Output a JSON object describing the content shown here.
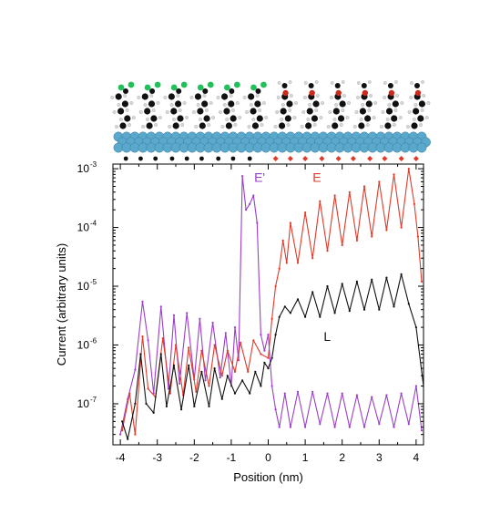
{
  "chart_data": {
    "type": "line",
    "xlabel": "Position (nm)",
    "ylabel": "Current (arbitrary units)",
    "xlim": [
      -4.2,
      4.2
    ],
    "ylim": [
      2e-08,
      0.0012
    ],
    "yscale": "log",
    "x_ticks": [
      -4,
      -3,
      -2,
      -1,
      0,
      1,
      2,
      3,
      4
    ],
    "x_tick_labels": [
      "-4",
      "-3",
      "-2",
      "-1",
      "0",
      "1",
      "2",
      "3",
      "4"
    ],
    "y_ticks": [
      {
        "value": 1e-07,
        "base": "10",
        "exp": "-7"
      },
      {
        "value": 1e-06,
        "base": "10",
        "exp": "-6"
      },
      {
        "value": 1e-05,
        "base": "10",
        "exp": "-5"
      },
      {
        "value": 0.0001,
        "base": "10",
        "exp": "-4"
      },
      {
        "value": 0.001,
        "base": "10",
        "exp": "-3"
      }
    ],
    "grid": false,
    "legend": "inline labels",
    "series": [
      {
        "name": "E'",
        "color": "#9b3fc9",
        "label_at": [
          -0.38,
          0.00072
        ],
        "x": [
          -4.0,
          -3.8,
          -3.6,
          -3.4,
          -3.25,
          -3.1,
          -2.9,
          -2.7,
          -2.55,
          -2.4,
          -2.2,
          -2.0,
          -1.85,
          -1.7,
          -1.5,
          -1.3,
          -1.15,
          -1.0,
          -0.9,
          -0.8,
          -0.7,
          -0.6,
          -0.5,
          -0.4,
          -0.3,
          -0.2,
          -0.1,
          0.0,
          0.1,
          0.2,
          0.3,
          0.45,
          0.6,
          0.8,
          1.0,
          1.2,
          1.4,
          1.6,
          1.8,
          2.0,
          2.2,
          2.4,
          2.6,
          2.8,
          3.0,
          3.2,
          3.4,
          3.6,
          3.8,
          4.0,
          4.15
        ],
        "values": [
          3e-08,
          1.2e-07,
          3.8e-07,
          5.5e-06,
          1.2e-06,
          1.5e-07,
          4.5e-06,
          1.8e-07,
          3.2e-06,
          2.2e-07,
          3.5e-06,
          2.6e-07,
          2.8e-06,
          2.5e-07,
          2.4e-06,
          2.8e-07,
          1.6e-06,
          2e-07,
          2e-06,
          5.5e-07,
          0.00075,
          0.0002,
          0.00025,
          0.00035,
          0.00012,
          1.5e-06,
          8e-07,
          1.5e-06,
          2e-07,
          8e-08,
          4e-08,
          1.5e-07,
          4e-08,
          1.6e-07,
          4e-08,
          1.6e-07,
          4.5e-08,
          1.5e-07,
          4e-08,
          1.5e-07,
          4e-08,
          1.4e-07,
          4e-08,
          1.3e-07,
          4.5e-08,
          1.4e-07,
          4e-08,
          1.5e-07,
          4.5e-08,
          2e-07,
          3.5e-08
        ]
      },
      {
        "name": "E",
        "color": "#e03a2a",
        "label_at": [
          1.2,
          0.00072
        ],
        "x": [
          -3.95,
          -3.75,
          -3.6,
          -3.4,
          -3.25,
          -3.05,
          -2.85,
          -2.65,
          -2.5,
          -2.3,
          -2.15,
          -1.95,
          -1.8,
          -1.6,
          -1.45,
          -1.25,
          -1.1,
          -0.9,
          -0.75,
          -0.55,
          -0.4,
          -0.2,
          0.0,
          0.1,
          0.2,
          0.3,
          0.4,
          0.5,
          0.6,
          0.8,
          1.0,
          1.2,
          1.4,
          1.6,
          1.8,
          2.0,
          2.2,
          2.4,
          2.6,
          2.8,
          3.0,
          3.2,
          3.4,
          3.6,
          3.8,
          3.95,
          4.05,
          4.15
        ],
        "values": [
          3.5e-08,
          1.5e-07,
          3e-08,
          1.4e-06,
          1.8e-07,
          1.3e-07,
          1.3e-06,
          1.5e-07,
          1e-06,
          1.4e-07,
          9e-07,
          1.6e-07,
          8e-07,
          2e-07,
          1e-06,
          3e-07,
          8e-07,
          3.5e-07,
          1.1e-06,
          3.5e-07,
          1.2e-06,
          7e-07,
          6e-07,
          2.8e-06,
          1e-05,
          2e-05,
          6e-05,
          2.5e-05,
          0.00012,
          2.5e-05,
          0.00018,
          3e-05,
          0.00028,
          4e-05,
          0.00035,
          5e-05,
          0.0004,
          6e-05,
          0.0005,
          7e-05,
          0.0006,
          9e-05,
          0.0008,
          0.0001,
          0.001,
          0.00025,
          7e-05,
          1.2e-05
        ]
      },
      {
        "name": "L",
        "color": "#111111",
        "label_at": [
          1.5,
          1.4e-06
        ],
        "x": [
          -3.95,
          -3.8,
          -3.6,
          -3.45,
          -3.3,
          -3.1,
          -2.9,
          -2.75,
          -2.55,
          -2.35,
          -2.15,
          -2.0,
          -1.8,
          -1.6,
          -1.45,
          -1.25,
          -1.1,
          -0.9,
          -0.7,
          -0.5,
          -0.35,
          -0.2,
          -0.1,
          0.0,
          0.1,
          0.2,
          0.3,
          0.45,
          0.6,
          0.8,
          1.0,
          1.2,
          1.4,
          1.6,
          1.8,
          2.0,
          2.2,
          2.4,
          2.6,
          2.8,
          3.0,
          3.2,
          3.4,
          3.6,
          3.8,
          4.0,
          4.2
        ],
        "values": [
          5e-08,
          2.5e-08,
          1e-07,
          7e-07,
          1e-07,
          7e-08,
          7e-07,
          9e-08,
          4.5e-07,
          8e-08,
          4.5e-07,
          9e-08,
          3.5e-07,
          9e-08,
          4e-07,
          1.2e-07,
          3e-07,
          1.5e-07,
          2.5e-07,
          1.5e-07,
          3.5e-07,
          2e-07,
          5e-07,
          4e-07,
          6e-07,
          1.5e-06,
          3e-06,
          4.5e-06,
          3.5e-06,
          6e-06,
          3e-06,
          8e-06,
          3e-06,
          1e-05,
          3.5e-06,
          1.1e-05,
          3.8e-06,
          1.2e-05,
          4e-06,
          1.3e-05,
          4e-06,
          1.4e-05,
          4.5e-06,
          1.6e-05,
          5e-06,
          2e-06,
          2e-07
        ]
      }
    ],
    "marker_rows": [
      {
        "name": "",
        "color": "#111111",
        "shape": "circle",
        "x": [
          -3.85,
          -3.45,
          -3.05,
          -2.6,
          -2.2,
          -1.8,
          -1.35,
          -0.95,
          -0.5
        ]
      },
      {
        "name": "",
        "color": "#e03a2a",
        "shape": "diamond",
        "x": [
          0.2,
          0.6,
          1.0,
          1.45,
          1.9,
          2.3,
          2.75,
          3.15,
          3.6,
          4.0
        ]
      }
    ]
  },
  "colors": {
    "surface_atom": "#5aa8cc",
    "carbon_atom": "#111111",
    "hydrogen_atom": "#d8d8d8",
    "chlorine_atom": "#22c05a",
    "oxygen_atom": "#cc2a1a"
  },
  "molecule_strip": {
    "icon": "molecular-adsorbate-illustration",
    "molecules_left": 6,
    "molecules_right": 6,
    "left_substituent": "chlorine",
    "right_substituent": "oxygen"
  }
}
